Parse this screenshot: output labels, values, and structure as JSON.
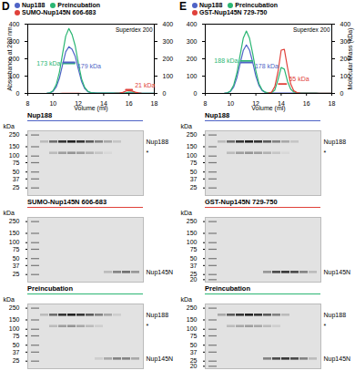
{
  "chart_data": [
    {
      "type": "line",
      "panel": "D",
      "legend": "top",
      "annotation": "Superdex 200",
      "xlabel": "Volume (ml)",
      "ylabel": "Absorbance at 280 nm",
      "x": [
        8,
        8.25,
        8.5,
        8.75,
        9,
        9.25,
        9.5,
        9.75,
        10,
        10.25,
        10.5,
        10.75,
        11,
        11.25,
        11.5,
        11.75,
        12,
        12.25,
        12.5,
        12.75,
        13,
        13.25,
        13.5,
        13.75,
        14,
        14.25,
        14.5,
        14.75,
        15,
        15.25,
        15.5,
        15.75,
        16,
        16.25,
        16.5,
        16.75,
        17,
        17.25,
        17.5,
        17.75,
        18
      ],
      "series": [
        {
          "name": "Nup188",
          "color": "#4f63c6",
          "values": [
            0,
            0,
            0,
            0,
            0,
            0,
            1,
            3,
            12,
            37,
            88,
            165,
            240,
            270,
            255,
            215,
            140,
            70,
            28,
            10,
            4,
            3,
            2,
            2,
            2,
            2,
            2,
            2,
            2,
            2,
            2,
            2,
            3,
            3,
            2,
            2,
            1,
            1,
            1,
            1,
            1
          ]
        },
        {
          "name": "Preincubation",
          "color": "#2bb673",
          "values": [
            0,
            0,
            0,
            0,
            0,
            0,
            1,
            4,
            16,
            51,
            122,
            228,
            331,
            375,
            340,
            275,
            175,
            85,
            35,
            12,
            5,
            3,
            2,
            2,
            2,
            2,
            2,
            2,
            2,
            2,
            2,
            4,
            8,
            8,
            4,
            2,
            1,
            1,
            1,
            1,
            1
          ]
        },
        {
          "name": "SUMO-Nup145N 606-683",
          "color": "#e0413a",
          "values": [
            0,
            0,
            0,
            0,
            0,
            0,
            0,
            0,
            0,
            0,
            0,
            1,
            1,
            1,
            1,
            1,
            1,
            0,
            0,
            0,
            0,
            0,
            0,
            0,
            0,
            0,
            0,
            0,
            1,
            2,
            6,
            13,
            17,
            14,
            7,
            3,
            1,
            0,
            0,
            0,
            0
          ]
        }
      ],
      "mass": [
        {
          "name": "Preincubation",
          "color": "#2bb673",
          "axis": "y2",
          "label": "173 kDa",
          "x": [
            10.8,
            11.25,
            11.7
          ],
          "values": [
            173,
            173,
            173
          ]
        },
        {
          "name": "Nup188",
          "color": "#4f63c6",
          "axis": "y2",
          "label": "179 kDa",
          "x": [
            10.8,
            11.25,
            11.7
          ],
          "values": [
            179,
            179,
            179
          ]
        },
        {
          "name": "SUMO-Nup145N 606-683",
          "color": "#e0413a",
          "axis": "y2",
          "label": "21 kDa",
          "x": [
            15.75,
            16,
            16.25
          ],
          "values": [
            21,
            21,
            21
          ]
        }
      ],
      "xlim": [
        8,
        18
      ],
      "xticks": [
        8,
        10,
        12,
        14,
        16,
        18
      ],
      "ylim": [
        0,
        400
      ],
      "yticks": [
        0,
        100,
        200,
        300,
        400
      ],
      "y2lim": [
        0,
        400
      ],
      "y2ticks": [
        0,
        100,
        200,
        300,
        400
      ]
    },
    {
      "type": "gel",
      "panel": "D",
      "title": "Nup188",
      "color": "#4f63c6",
      "ylabel": "kDa",
      "log": "y",
      "ylim": [
        18,
        300
      ],
      "yticks": [
        250,
        150,
        100,
        75,
        50,
        37,
        25
      ],
      "bands": [
        {
          "label": "Nup188",
          "kda": 188,
          "lanes": [
            0.2,
            0.6,
            0.9,
            1,
            0.9,
            0.7,
            0.5,
            0.3,
            0.15,
            0,
            0
          ]
        },
        {
          "label": "*",
          "kda": 115,
          "lanes": [
            0,
            0.2,
            0.35,
            0.4,
            0.35,
            0.25,
            0.15,
            0.05,
            0,
            0,
            0
          ]
        }
      ]
    },
    {
      "type": "gel",
      "panel": "D",
      "title": "SUMO-Nup145N 606-683",
      "color": "#e0413a",
      "ylabel": "kDa",
      "log": "y",
      "ylim": [
        18,
        300
      ],
      "yticks": [
        250,
        150,
        100,
        75,
        50,
        37,
        25
      ],
      "bands": [
        {
          "label": "Nup145N",
          "kda": 28,
          "lanes": [
            0,
            0,
            0,
            0,
            0,
            0,
            0,
            0.2,
            0.5,
            0.6,
            0.4
          ]
        }
      ]
    },
    {
      "type": "gel",
      "panel": "D",
      "title": "Preincubation",
      "color": "#2bb673",
      "ylabel": "kDa",
      "log": "y",
      "ylim": [
        18,
        300
      ],
      "yticks": [
        250,
        150,
        100,
        75,
        50,
        37,
        25
      ],
      "bands": [
        {
          "label": "Nup188",
          "kda": 188,
          "lanes": [
            0.2,
            0.6,
            0.9,
            1,
            0.9,
            0.7,
            0.5,
            0.3,
            0.1,
            0,
            0
          ]
        },
        {
          "label": "*",
          "kda": 115,
          "lanes": [
            0,
            0.2,
            0.35,
            0.4,
            0.3,
            0.2,
            0.1,
            0,
            0,
            0,
            0
          ]
        },
        {
          "label": "Nup145N",
          "kda": 28,
          "lanes": [
            0,
            0,
            0,
            0,
            0,
            0,
            0.1,
            0.3,
            0.5,
            0.5,
            0.3
          ]
        }
      ]
    },
    {
      "type": "line",
      "panel": "E",
      "legend": "top",
      "annotation": "Superdex 200",
      "xlabel": "Volume (ml)",
      "y2label": "Molecular Mass (kDa)",
      "x": [
        8,
        8.25,
        8.5,
        8.75,
        9,
        9.25,
        9.5,
        9.75,
        10,
        10.25,
        10.5,
        10.75,
        11,
        11.25,
        11.5,
        11.75,
        12,
        12.25,
        12.5,
        12.75,
        13,
        13.25,
        13.5,
        13.75,
        14,
        14.25,
        14.5,
        14.75,
        15,
        15.25,
        15.5,
        15.75,
        16,
        16.25,
        16.5,
        16.75,
        17,
        17.25,
        17.5,
        17.75,
        18
      ],
      "series": [
        {
          "name": "Nup188",
          "color": "#4f63c6",
          "values": [
            0,
            0,
            0,
            0,
            0,
            0,
            1,
            3,
            12,
            38,
            91,
            170,
            247,
            280,
            250,
            180,
            100,
            45,
            16,
            6,
            3,
            2,
            2,
            2,
            2,
            2,
            2,
            2,
            2,
            2,
            2,
            2,
            2,
            2,
            2,
            2,
            1,
            1,
            1,
            1,
            1
          ]
        },
        {
          "name": "Preincubation",
          "color": "#2bb673",
          "values": [
            0,
            0,
            0,
            0,
            0,
            0,
            1,
            4,
            15,
            49,
            117,
            219,
            318,
            360,
            318,
            230,
            130,
            55,
            20,
            7,
            3,
            5,
            20,
            80,
            150,
            140,
            70,
            25,
            8,
            3,
            2,
            2,
            2,
            2,
            2,
            2,
            1,
            1,
            1,
            1,
            1
          ]
        },
        {
          "name": "GST-Nup145N 729-750",
          "color": "#e0413a",
          "values": [
            0,
            0,
            0,
            0,
            0,
            0,
            0,
            0,
            0,
            0,
            0,
            0,
            0,
            0,
            0,
            0,
            0,
            0,
            0,
            0,
            2,
            8,
            40,
            125,
            250,
            255,
            150,
            55,
            15,
            5,
            2,
            1,
            1,
            1,
            1,
            1,
            1,
            1,
            1,
            1,
            1
          ]
        }
      ],
      "mass": [
        {
          "name": "Preincubation",
          "color": "#2bb673",
          "axis": "y2",
          "label": "188 kDa",
          "x": [
            10.8,
            11.25,
            11.7
          ],
          "values": [
            188,
            188,
            188
          ]
        },
        {
          "name": "Nup188",
          "color": "#4f63c6",
          "axis": "y2",
          "label": "178 kDa",
          "x": [
            10.8,
            11.25,
            11.7
          ],
          "values": [
            178,
            178,
            178
          ]
        },
        {
          "name": "GST-Nup145N 729-750",
          "color": "#e0413a",
          "axis": "y2",
          "label": "55 kDa",
          "x": [
            13.8,
            14.1,
            14.4
          ],
          "values": [
            55,
            55,
            55
          ]
        }
      ],
      "xlim": [
        8,
        18
      ],
      "xticks": [
        8,
        10,
        12,
        14,
        16,
        18
      ],
      "ylim": [
        0,
        400
      ],
      "yticks": [
        0,
        100,
        200,
        300,
        400
      ],
      "y2lim": [
        0,
        400
      ],
      "y2ticks": [
        0,
        100,
        200,
        300,
        400
      ]
    },
    {
      "type": "gel",
      "panel": "E",
      "title": "Nup188",
      "color": "#4f63c6",
      "ylabel": "kDa",
      "log": "y",
      "ylim": [
        18,
        300
      ],
      "yticks": [
        250,
        150,
        100,
        75,
        50,
        37,
        25
      ],
      "bands": [
        {
          "label": "Nup188",
          "kda": 188,
          "lanes": [
            0.2,
            0.6,
            0.9,
            1,
            0.9,
            0.7,
            0.5,
            0.3,
            0.15,
            0,
            0
          ]
        },
        {
          "label": "*",
          "kda": 115,
          "lanes": [
            0,
            0.2,
            0.35,
            0.4,
            0.35,
            0.25,
            0.15,
            0.05,
            0,
            0,
            0
          ]
        }
      ]
    },
    {
      "type": "gel",
      "panel": "E",
      "title": "GST-Nup145N 729-750",
      "color": "#e0413a",
      "ylabel": "kDa",
      "log": "y",
      "ylim": [
        18,
        300
      ],
      "yticks": [
        250,
        150,
        100,
        75,
        50,
        37,
        25,
        20
      ],
      "bands": [
        {
          "label": "Nup145N",
          "kda": 28,
          "lanes": [
            0,
            0,
            0,
            0,
            0,
            0.4,
            0.8,
            0.9,
            0.8,
            0.5,
            0.2
          ]
        }
      ]
    },
    {
      "type": "gel",
      "panel": "E",
      "title": "Preincubation",
      "color": "#2bb673",
      "ylabel": "kDa",
      "log": "y",
      "ylim": [
        18,
        300
      ],
      "yticks": [
        250,
        150,
        100,
        75,
        50,
        37,
        25,
        20
      ],
      "bands": [
        {
          "label": "Nup188",
          "kda": 188,
          "lanes": [
            0.3,
            0.7,
            0.9,
            1,
            0.9,
            0.7,
            0.5,
            0.2,
            0,
            0,
            0
          ]
        },
        {
          "label": "*",
          "kda": 115,
          "lanes": [
            0,
            0.2,
            0.3,
            0.35,
            0.3,
            0.2,
            0.1,
            0,
            0,
            0,
            0
          ]
        },
        {
          "label": "Nup145N",
          "kda": 28,
          "lanes": [
            0,
            0,
            0,
            0,
            0,
            0.5,
            0.8,
            0.9,
            0.8,
            0.5,
            0.2
          ]
        }
      ]
    }
  ]
}
